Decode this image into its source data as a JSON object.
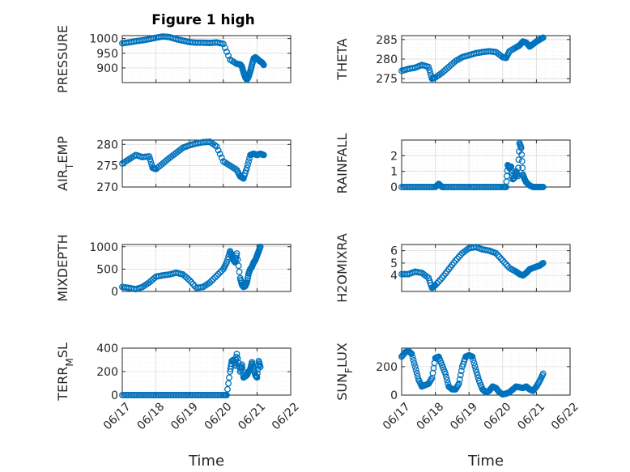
{
  "figure_title": "Figure 1 high",
  "colors": {
    "marker": "#0072bd",
    "axes": "#262626",
    "grid_major": "#dcdcdc",
    "grid_minor": "#ececec"
  },
  "chart_data": [
    {
      "type": "scatter",
      "ylabel": "PRESSURE",
      "xlabel": "",
      "title": "Figure 1 high",
      "xlim": [
        "06/17",
        "06/22"
      ],
      "ylim": [
        850,
        1010
      ],
      "yticks": [
        900,
        950,
        1000
      ],
      "grid": true,
      "show_xticks": false,
      "series": [
        {
          "x": [
            0.0,
            0.2,
            0.4,
            0.6,
            0.8,
            1.0,
            1.2,
            1.4,
            1.6,
            1.8,
            2.0,
            2.2,
            2.4,
            2.6,
            2.8,
            3.0,
            3.2,
            3.4,
            3.5,
            3.55,
            3.6,
            3.65,
            3.7,
            3.75,
            3.8,
            3.85,
            3.9,
            3.95,
            4.0,
            4.05,
            4.1,
            4.15,
            4.2
          ],
          "y": [
            984,
            987,
            991,
            994,
            998,
            1003,
            1007,
            1005,
            998,
            993,
            988,
            986,
            986,
            985,
            987,
            982,
            928,
            914,
            912,
            905,
            885,
            868,
            860,
            870,
            888,
            910,
            932,
            936,
            932,
            926,
            922,
            918,
            910
          ]
        }
      ]
    },
    {
      "type": "scatter",
      "ylabel": "THETA",
      "xlabel": "",
      "xlim": [
        "06/17",
        "06/22"
      ],
      "ylim": [
        274,
        286
      ],
      "yticks": [
        275,
        280,
        285
      ],
      "grid": true,
      "show_xticks": false,
      "series": [
        {
          "x": [
            0.0,
            0.2,
            0.4,
            0.6,
            0.8,
            0.9,
            1.0,
            1.2,
            1.4,
            1.6,
            1.8,
            2.0,
            2.2,
            2.4,
            2.6,
            2.8,
            3.0,
            3.1,
            3.2,
            3.4,
            3.5,
            3.6,
            3.7,
            3.8,
            3.9,
            4.0,
            4.1,
            4.2
          ],
          "y": [
            277,
            277.5,
            277.8,
            278.5,
            278,
            275,
            275.3,
            276.5,
            278,
            279.5,
            280.5,
            281,
            281.5,
            281.8,
            282,
            281.8,
            280.5,
            280.3,
            282,
            283,
            283.5,
            284.5,
            284.2,
            283.2,
            283.8,
            284.5,
            285,
            285.5
          ]
        }
      ]
    },
    {
      "type": "scatter",
      "ylabel": "AIR_TEMP",
      "ylabel_main": "AIR",
      "ylabel_sub": "T",
      "ylabel_rest": "EMP",
      "xlabel": "",
      "xlim": [
        "06/17",
        "06/22"
      ],
      "ylim": [
        270,
        281
      ],
      "yticks": [
        270,
        275,
        280
      ],
      "grid": true,
      "show_xticks": false,
      "series": [
        {
          "x": [
            0.0,
            0.2,
            0.4,
            0.6,
            0.8,
            0.9,
            1.0,
            1.2,
            1.4,
            1.6,
            1.8,
            2.0,
            2.2,
            2.4,
            2.6,
            2.8,
            3.0,
            3.2,
            3.4,
            3.5,
            3.6,
            3.7,
            3.8,
            3.9,
            4.0,
            4.1,
            4.2
          ],
          "y": [
            275.5,
            276.5,
            277.5,
            277,
            277.2,
            274.5,
            274.2,
            275.5,
            276.8,
            278,
            279.2,
            279.8,
            280.2,
            280.5,
            280.6,
            279.5,
            276,
            275,
            274,
            272.5,
            272,
            274.5,
            277.5,
            277.8,
            277.5,
            277.8,
            277.5
          ]
        }
      ]
    },
    {
      "type": "scatter",
      "ylabel": "RAINFALL",
      "xlabel": "",
      "xlim": [
        "06/17",
        "06/22"
      ],
      "ylim": [
        0,
        3
      ],
      "yticks": [
        0,
        1,
        2
      ],
      "grid": true,
      "show_xticks": false,
      "series": [
        {
          "x": [
            0.0,
            0.2,
            0.4,
            0.6,
            0.8,
            1.0,
            1.1,
            1.2,
            1.4,
            1.6,
            1.8,
            2.0,
            2.2,
            2.4,
            2.6,
            2.8,
            3.0,
            3.1,
            3.15,
            3.2,
            3.25,
            3.3,
            3.35,
            3.4,
            3.45,
            3.5,
            3.55,
            3.6,
            3.65,
            3.7,
            3.8,
            3.9,
            4.0,
            4.1,
            4.2
          ],
          "y": [
            0,
            0,
            0,
            0,
            0,
            0,
            0.2,
            0,
            0,
            0,
            0,
            0,
            0,
            0,
            0,
            0,
            0,
            0,
            1.4,
            1.2,
            1.3,
            0.5,
            0.6,
            1.0,
            0.7,
            2.8,
            2.5,
            0.8,
            0.5,
            0.3,
            0.1,
            0,
            0,
            0,
            0
          ]
        }
      ]
    },
    {
      "type": "scatter",
      "ylabel": "MIXDEPTH",
      "xlabel": "",
      "xlim": [
        "06/17",
        "06/22"
      ],
      "ylim": [
        0,
        1050
      ],
      "yticks": [
        0,
        500,
        1000
      ],
      "grid": true,
      "show_xticks": false,
      "series": [
        {
          "x": [
            0.0,
            0.2,
            0.4,
            0.6,
            0.8,
            1.0,
            1.2,
            1.4,
            1.6,
            1.8,
            2.0,
            2.2,
            2.4,
            2.6,
            2.8,
            3.0,
            3.1,
            3.2,
            3.25,
            3.3,
            3.35,
            3.4,
            3.5,
            3.55,
            3.6,
            3.65,
            3.7,
            3.75,
            3.8,
            3.85,
            3.9,
            3.95,
            4.0,
            4.05,
            4.1
          ],
          "y": [
            100,
            80,
            50,
            100,
            200,
            330,
            360,
            380,
            420,
            380,
            250,
            80,
            100,
            200,
            350,
            500,
            650,
            900,
            800,
            700,
            650,
            850,
            300,
            150,
            100,
            120,
            200,
            400,
            500,
            550,
            650,
            700,
            800,
            900,
            1000
          ]
        }
      ]
    },
    {
      "type": "scatter",
      "ylabel": "H2OMIXRA",
      "xlabel": "",
      "xlim": [
        "06/17",
        "06/22"
      ],
      "ylim": [
        2.7,
        6.5
      ],
      "yticks": [
        4,
        5,
        6
      ],
      "grid": true,
      "show_xticks": false,
      "series": [
        {
          "x": [
            0.0,
            0.2,
            0.4,
            0.6,
            0.8,
            0.9,
            1.0,
            1.2,
            1.4,
            1.6,
            1.8,
            2.0,
            2.2,
            2.4,
            2.6,
            2.8,
            3.0,
            3.2,
            3.4,
            3.5,
            3.6,
            3.7,
            3.8,
            3.9,
            4.0,
            4.1,
            4.2
          ],
          "y": [
            4.1,
            4.1,
            4.3,
            4.2,
            3.8,
            3.0,
            3.2,
            3.8,
            4.5,
            5.2,
            5.8,
            6.2,
            6.3,
            6.1,
            6.0,
            5.8,
            5.2,
            4.6,
            4.3,
            4.1,
            4.0,
            4.2,
            4.5,
            4.6,
            4.7,
            4.8,
            5.0
          ]
        }
      ]
    },
    {
      "type": "scatter",
      "ylabel": "TERR_MSL",
      "ylabel_main": "TERR",
      "ylabel_sub": "M",
      "ylabel_rest": "SL",
      "xlabel": "Time",
      "xlim": [
        "06/17",
        "06/22"
      ],
      "ylim": [
        0,
        400
      ],
      "yticks": [
        0,
        200,
        400
      ],
      "grid": true,
      "show_xticks": true,
      "xtick_labels": [
        "06/17",
        "06/18",
        "06/19",
        "06/20",
        "06/21",
        "06/22"
      ],
      "series": [
        {
          "x": [
            0.0,
            0.2,
            0.4,
            0.6,
            0.8,
            1.0,
            1.2,
            1.4,
            1.6,
            1.8,
            2.0,
            2.2,
            2.4,
            2.6,
            2.8,
            3.0,
            3.1,
            3.2,
            3.25,
            3.3,
            3.35,
            3.4,
            3.5,
            3.55,
            3.6,
            3.65,
            3.7,
            3.75,
            3.8,
            3.85,
            3.9,
            3.95,
            4.0,
            4.05,
            4.1
          ],
          "y": [
            0,
            0,
            0,
            0,
            0,
            0,
            0,
            0,
            0,
            0,
            0,
            0,
            0,
            0,
            0,
            0,
            0,
            200,
            290,
            300,
            250,
            350,
            200,
            260,
            150,
            160,
            170,
            200,
            220,
            280,
            230,
            170,
            150,
            290,
            240
          ]
        }
      ]
    },
    {
      "type": "scatter",
      "ylabel": "SUN_FLUX",
      "ylabel_main": "SUN",
      "ylabel_sub": "F",
      "ylabel_rest": "LUX",
      "xlabel": "Time",
      "xlim": [
        "06/17",
        "06/22"
      ],
      "ylim": [
        0,
        330
      ],
      "yticks": [
        0,
        200
      ],
      "grid": true,
      "show_xticks": true,
      "xtick_labels": [
        "06/17",
        "06/18",
        "06/19",
        "06/20",
        "06/21",
        "06/22"
      ],
      "series": [
        {
          "x": [
            0.0,
            0.1,
            0.2,
            0.3,
            0.4,
            0.5,
            0.6,
            0.7,
            0.8,
            0.9,
            1.0,
            1.1,
            1.2,
            1.3,
            1.4,
            1.5,
            1.6,
            1.7,
            1.8,
            1.9,
            2.0,
            2.1,
            2.2,
            2.3,
            2.4,
            2.5,
            2.6,
            2.7,
            2.8,
            2.9,
            3.0,
            3.1,
            3.2,
            3.3,
            3.4,
            3.5,
            3.6,
            3.7,
            3.8,
            3.9,
            4.0,
            4.1,
            4.2
          ],
          "y": [
            270,
            300,
            310,
            290,
            200,
            110,
            60,
            70,
            80,
            120,
            260,
            270,
            210,
            150,
            60,
            40,
            40,
            80,
            200,
            270,
            280,
            270,
            180,
            100,
            40,
            20,
            30,
            60,
            50,
            20,
            5,
            10,
            20,
            40,
            60,
            55,
            50,
            60,
            40,
            30,
            60,
            100,
            150
          ]
        }
      ]
    }
  ]
}
